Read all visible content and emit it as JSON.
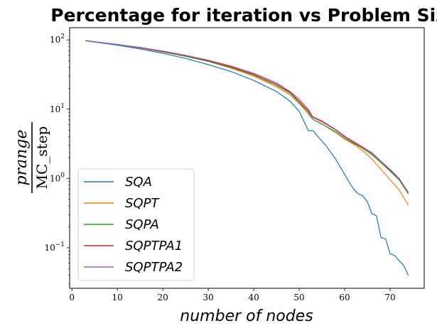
{
  "chart_data": {
    "type": "line",
    "title": "Percentage for iteration vs Problem Size",
    "xlabel": "number of nodes",
    "ylabel_numerator": "prange",
    "ylabel_denominator": "MC_step",
    "yscale": "log",
    "xlim": [
      -0.5,
      77.5
    ],
    "ylim": [
      0.026,
      150
    ],
    "xticks": [
      0,
      10,
      20,
      30,
      40,
      50,
      60,
      70
    ],
    "yticks": [
      {
        "value": 100,
        "base": "10",
        "exp": "2"
      },
      {
        "value": 10,
        "base": "10",
        "exp": "1"
      },
      {
        "value": 1,
        "base": "10",
        "exp": "0"
      },
      {
        "value": 0.1,
        "base": "10",
        "exp": "−1"
      }
    ],
    "legend_position": "lower-left",
    "grid": false,
    "series": [
      {
        "name": "SQA",
        "color": "#1f77b4",
        "x": [
          3,
          5,
          10,
          15,
          20,
          25,
          30,
          35,
          40,
          45,
          48,
          50,
          51,
          52,
          53,
          54,
          56,
          58,
          60,
          61,
          62,
          63,
          64,
          65,
          66,
          67,
          68,
          69,
          70,
          71,
          72,
          73,
          74
        ],
        "y": [
          97,
          93,
          84,
          74,
          64,
          54,
          44,
          35,
          26,
          18,
          13,
          9.3,
          6.8,
          4.9,
          4.9,
          4.1,
          2.9,
          1.9,
          1.15,
          0.88,
          0.7,
          0.6,
          0.56,
          0.46,
          0.31,
          0.29,
          0.14,
          0.135,
          0.082,
          0.077,
          0.065,
          0.055,
          0.04
        ]
      },
      {
        "name": "SQPT",
        "color": "#ff7f0e",
        "x": [
          3,
          5,
          10,
          15,
          20,
          25,
          30,
          35,
          40,
          45,
          48,
          50,
          52,
          53,
          55,
          58,
          60,
          62,
          64,
          66,
          68,
          70,
          72,
          74
        ],
        "y": [
          98,
          94,
          86,
          77,
          67,
          58,
          49,
          39,
          30,
          21,
          16,
          12,
          8.5,
          7.1,
          6.1,
          4.6,
          3.7,
          3.1,
          2.5,
          1.9,
          1.35,
          0.96,
          0.68,
          0.41
        ]
      },
      {
        "name": "SQPA",
        "color": "#2ca02c",
        "x": [
          3,
          5,
          10,
          15,
          20,
          25,
          30,
          35,
          40,
          45,
          48,
          50,
          52,
          53,
          55,
          58,
          60,
          62,
          64,
          66,
          68,
          70,
          72,
          74
        ],
        "y": [
          98,
          94,
          86,
          77,
          67,
          58,
          49,
          40,
          31,
          22,
          17,
          12.5,
          9,
          7.1,
          6.1,
          4.7,
          3.8,
          3.2,
          2.7,
          2.2,
          1.68,
          1.28,
          0.95,
          0.6
        ]
      },
      {
        "name": "SQPTPA1",
        "color": "#d62728",
        "x": [
          3,
          5,
          10,
          15,
          20,
          25,
          30,
          35,
          40,
          45,
          48,
          50,
          52,
          53,
          55,
          58,
          60,
          62,
          64,
          66,
          68,
          70,
          72,
          74
        ],
        "y": [
          98,
          94,
          86,
          77,
          68,
          59,
          50,
          41,
          32,
          23,
          17.5,
          13,
          9.5,
          7.6,
          6.6,
          5,
          4,
          3.3,
          2.8,
          2.3,
          1.75,
          1.32,
          0.98,
          0.62
        ]
      },
      {
        "name": "SQPTPA2",
        "color": "#9467bd",
        "x": [
          3,
          5,
          10,
          15,
          20,
          25,
          30,
          35,
          40,
          45,
          48,
          50,
          52,
          53,
          55,
          58,
          60,
          62,
          64,
          66,
          68,
          70,
          72,
          74
        ],
        "y": [
          98,
          94,
          86,
          78,
          69,
          60,
          51,
          42,
          33,
          24,
          18,
          14,
          10,
          7.8,
          6.8,
          5.1,
          4.1,
          3.4,
          2.85,
          2.35,
          1.78,
          1.35,
          1.0,
          0.63
        ]
      }
    ]
  }
}
